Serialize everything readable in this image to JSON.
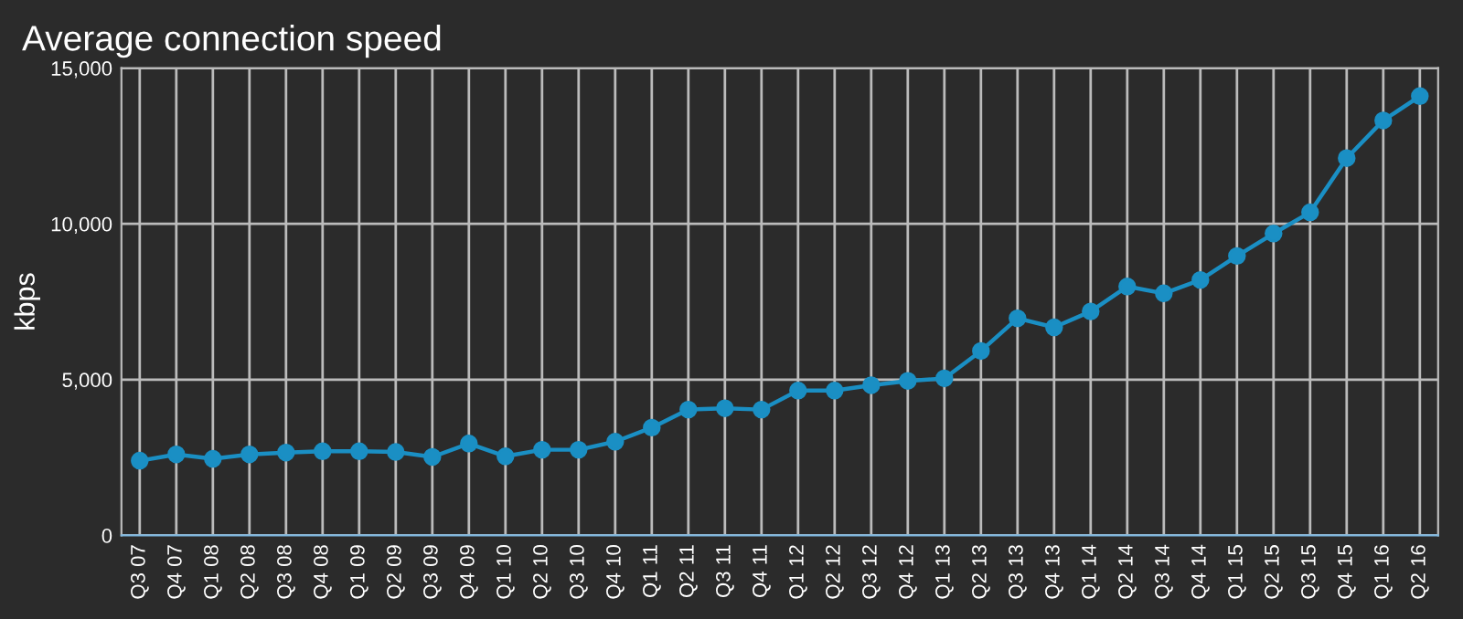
{
  "chart_data": {
    "type": "line",
    "title": "Average connection speed",
    "ylabel": "kbps",
    "categories": [
      "Q3 07",
      "Q4 07",
      "Q1 08",
      "Q2 08",
      "Q3 08",
      "Q4 08",
      "Q1 09",
      "Q2 09",
      "Q3 09",
      "Q4 09",
      "Q1 10",
      "Q2 10",
      "Q3 10",
      "Q4 10",
      "Q1 11",
      "Q2 11",
      "Q3 11",
      "Q4 11",
      "Q1 12",
      "Q2 12",
      "Q3 12",
      "Q4 12",
      "Q1 13",
      "Q2 13",
      "Q3 13",
      "Q4 13",
      "Q1 14",
      "Q2 14",
      "Q3 14",
      "Q4 14",
      "Q1 15",
      "Q2 15",
      "Q3 15",
      "Q4 15",
      "Q1 16",
      "Q2 16"
    ],
    "series": [
      {
        "color": "#1a8fc4",
        "values": [
          2400,
          2600,
          2460,
          2600,
          2660,
          2700,
          2700,
          2680,
          2520,
          2950,
          2540,
          2750,
          2750,
          3010,
          3460,
          4040,
          4080,
          4040,
          4650,
          4650,
          4820,
          4960,
          5040,
          5920,
          6970,
          6680,
          7190,
          7990,
          7770,
          8200,
          8970,
          9690,
          10370,
          12110,
          13320,
          14100
        ]
      }
    ],
    "ylim": [
      0,
      15000
    ],
    "yticks": [
      {
        "value": 0,
        "label": "0"
      },
      {
        "value": 5000,
        "label": "5,000"
      },
      {
        "value": 10000,
        "label": "10,000"
      },
      {
        "value": 15000,
        "label": "15,000"
      }
    ],
    "grid": true,
    "marker": "circle",
    "line_style": "solid"
  }
}
